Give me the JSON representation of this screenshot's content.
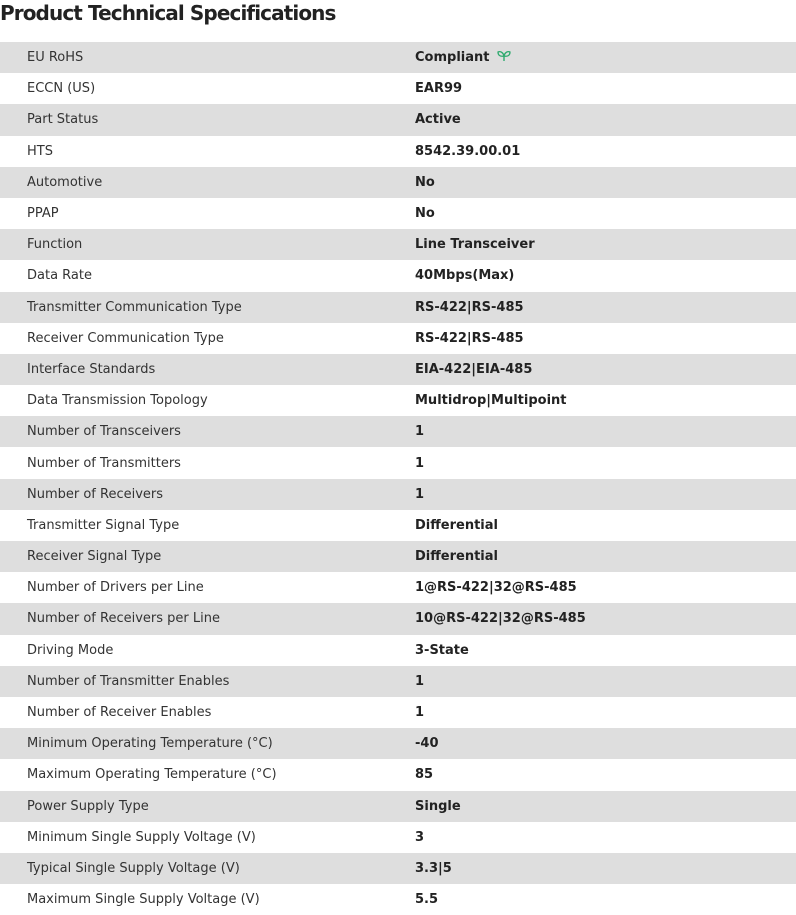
{
  "title": "Product Technical Specifications",
  "leaf_icon_color": "#2eaa6e",
  "specs": [
    {
      "label": "EU RoHS",
      "value": "Compliant",
      "icon": "leaf-icon"
    },
    {
      "label": "ECCN (US)",
      "value": "EAR99"
    },
    {
      "label": "Part Status",
      "value": "Active"
    },
    {
      "label": "HTS",
      "value": "8542.39.00.01"
    },
    {
      "label": "Automotive",
      "value": "No"
    },
    {
      "label": "PPAP",
      "value": "No"
    },
    {
      "label": "Function",
      "value": "Line Transceiver"
    },
    {
      "label": "Data Rate",
      "value": "40Mbps(Max)"
    },
    {
      "label": "Transmitter Communication Type",
      "value": "RS-422|RS-485"
    },
    {
      "label": "Receiver Communication Type",
      "value": "RS-422|RS-485"
    },
    {
      "label": "Interface Standards",
      "value": "EIA-422|EIA-485"
    },
    {
      "label": "Data Transmission Topology",
      "value": "Multidrop|Multipoint"
    },
    {
      "label": "Number of Transceivers",
      "value": "1"
    },
    {
      "label": "Number of Transmitters",
      "value": "1"
    },
    {
      "label": "Number of Receivers",
      "value": "1"
    },
    {
      "label": "Transmitter Signal Type",
      "value": "Differential"
    },
    {
      "label": "Receiver Signal Type",
      "value": "Differential"
    },
    {
      "label": "Number of Drivers per Line",
      "value": "1@RS-422|32@RS-485"
    },
    {
      "label": "Number of Receivers per Line",
      "value": "10@RS-422|32@RS-485"
    },
    {
      "label": "Driving Mode",
      "value": "3-State"
    },
    {
      "label": "Number of Transmitter Enables",
      "value": "1"
    },
    {
      "label": "Number of Receiver Enables",
      "value": "1"
    },
    {
      "label": "Minimum Operating Temperature (°C)",
      "value": "-40"
    },
    {
      "label": "Maximum Operating Temperature (°C)",
      "value": "85"
    },
    {
      "label": "Power Supply Type",
      "value": "Single"
    },
    {
      "label": "Minimum Single Supply Voltage (V)",
      "value": "3"
    },
    {
      "label": "Typical Single Supply Voltage (V)",
      "value": "3.3|5"
    },
    {
      "label": "Maximum Single Supply Voltage (V)",
      "value": "5.5"
    }
  ]
}
